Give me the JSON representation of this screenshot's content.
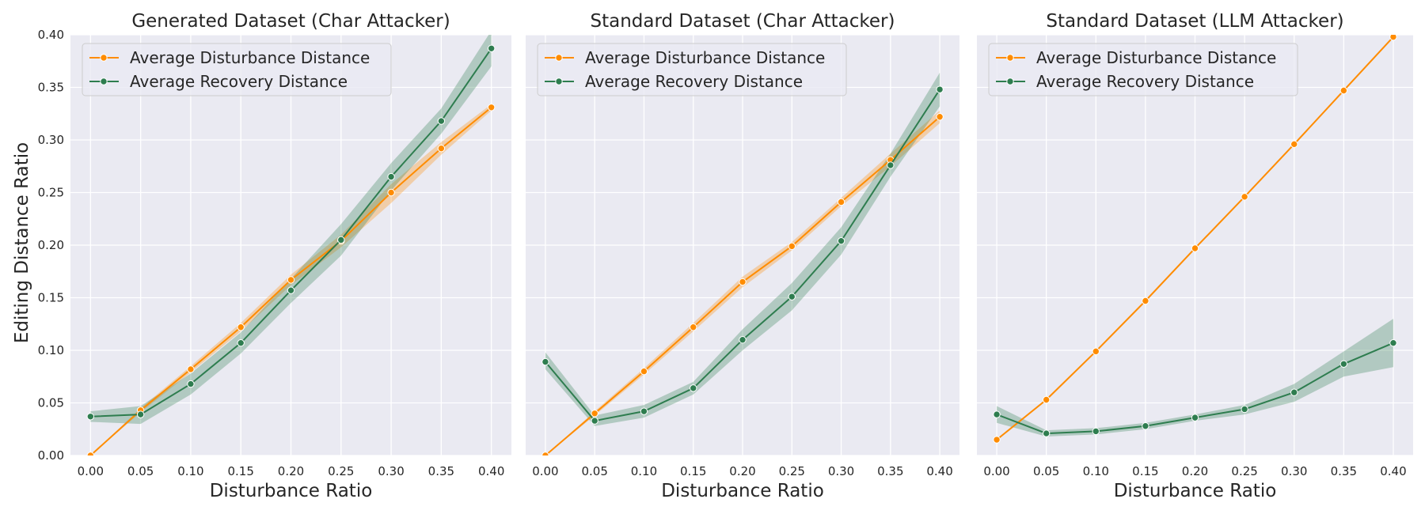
{
  "figure": {
    "ylabel": "Editing Distance Ratio"
  },
  "chart_data": [
    {
      "type": "line",
      "title": "Generated Dataset (Char Attacker)",
      "xlabel": "Disturbance Ratio",
      "ylabel": "Editing Distance Ratio",
      "xlim": [
        -0.02,
        0.42
      ],
      "ylim": [
        0,
        0.4
      ],
      "xticks": [
        "0.00",
        "0.05",
        "0.10",
        "0.15",
        "0.20",
        "0.25",
        "0.30",
        "0.35",
        "0.40"
      ],
      "yticks": [
        "0.00",
        "0.05",
        "0.10",
        "0.15",
        "0.20",
        "0.25",
        "0.30",
        "0.35",
        "0.40"
      ],
      "grid": true,
      "legend_position": "top-left",
      "x": [
        0,
        0.05,
        0.1,
        0.15,
        0.2,
        0.25,
        0.3,
        0.35,
        0.4
      ],
      "series": [
        {
          "name": "Average Disturbance Distance",
          "color": "#ff8c00",
          "values": [
            0.0,
            0.043,
            0.082,
            0.122,
            0.167,
            0.204,
            0.25,
            0.292,
            0.331
          ],
          "lower": [
            0.0,
            0.041,
            0.079,
            0.118,
            0.162,
            0.198,
            0.24,
            0.286,
            0.328
          ],
          "upper": [
            0.0,
            0.045,
            0.085,
            0.126,
            0.172,
            0.21,
            0.258,
            0.298,
            0.334
          ]
        },
        {
          "name": "Average Recovery Distance",
          "color": "#2e7d4f",
          "values": [
            0.037,
            0.039,
            0.068,
            0.107,
            0.157,
            0.205,
            0.265,
            0.318,
            0.387
          ],
          "lower": [
            0.032,
            0.03,
            0.058,
            0.097,
            0.145,
            0.19,
            0.252,
            0.306,
            0.37
          ],
          "upper": [
            0.042,
            0.047,
            0.078,
            0.117,
            0.168,
            0.22,
            0.278,
            0.33,
            0.404
          ]
        }
      ]
    },
    {
      "type": "line",
      "title": "Standard Dataset (Char Attacker)",
      "xlabel": "Disturbance Ratio",
      "xlim": [
        -0.02,
        0.42
      ],
      "ylim": [
        0,
        0.4
      ],
      "xticks": [
        "0.00",
        "0.05",
        "0.10",
        "0.15",
        "0.20",
        "0.25",
        "0.30",
        "0.35",
        "0.40"
      ],
      "grid": true,
      "legend_position": "top-left",
      "x": [
        0,
        0.05,
        0.1,
        0.15,
        0.2,
        0.25,
        0.3,
        0.35,
        0.4
      ],
      "series": [
        {
          "name": "Average Disturbance Distance",
          "color": "#ff8c00",
          "values": [
            0.0,
            0.04,
            0.08,
            0.122,
            0.165,
            0.199,
            0.241,
            0.281,
            0.322
          ],
          "lower": [
            0.0,
            0.038,
            0.077,
            0.118,
            0.16,
            0.195,
            0.237,
            0.275,
            0.316
          ],
          "upper": [
            0.0,
            0.042,
            0.083,
            0.126,
            0.17,
            0.203,
            0.245,
            0.287,
            0.328
          ]
        },
        {
          "name": "Average Recovery Distance",
          "color": "#2e7d4f",
          "values": [
            0.089,
            0.033,
            0.042,
            0.064,
            0.11,
            0.151,
            0.204,
            0.276,
            0.348
          ],
          "lower": [
            0.082,
            0.028,
            0.036,
            0.058,
            0.1,
            0.138,
            0.191,
            0.265,
            0.332
          ],
          "upper": [
            0.098,
            0.038,
            0.048,
            0.07,
            0.12,
            0.164,
            0.217,
            0.287,
            0.364
          ]
        }
      ]
    },
    {
      "type": "line",
      "title": "Standard Dataset (LLM Attacker)",
      "xlabel": "Disturbance Ratio",
      "xlim": [
        -0.02,
        0.42
      ],
      "ylim": [
        0,
        0.4
      ],
      "xticks": [
        "0.00",
        "0.05",
        "0.10",
        "0.15",
        "0.20",
        "0.25",
        "0.30",
        "0.35",
        "0.40"
      ],
      "grid": true,
      "legend_position": "top-left",
      "x": [
        0,
        0.05,
        0.1,
        0.15,
        0.2,
        0.25,
        0.3,
        0.35,
        0.4
      ],
      "series": [
        {
          "name": "Average Disturbance Distance",
          "color": "#ff8c00",
          "values": [
            0.015,
            0.053,
            0.099,
            0.147,
            0.197,
            0.246,
            0.296,
            0.347,
            0.398
          ],
          "lower": [
            0.015,
            0.052,
            0.098,
            0.146,
            0.196,
            0.245,
            0.295,
            0.346,
            0.397
          ],
          "upper": [
            0.015,
            0.054,
            0.1,
            0.148,
            0.198,
            0.247,
            0.297,
            0.348,
            0.399
          ]
        },
        {
          "name": "Average Recovery Distance",
          "color": "#2e7d4f",
          "values": [
            0.039,
            0.021,
            0.023,
            0.028,
            0.036,
            0.044,
            0.06,
            0.087,
            0.107
          ],
          "lower": [
            0.031,
            0.018,
            0.02,
            0.025,
            0.033,
            0.039,
            0.051,
            0.075,
            0.084
          ],
          "upper": [
            0.047,
            0.024,
            0.026,
            0.031,
            0.039,
            0.048,
            0.068,
            0.099,
            0.13
          ]
        }
      ]
    }
  ]
}
